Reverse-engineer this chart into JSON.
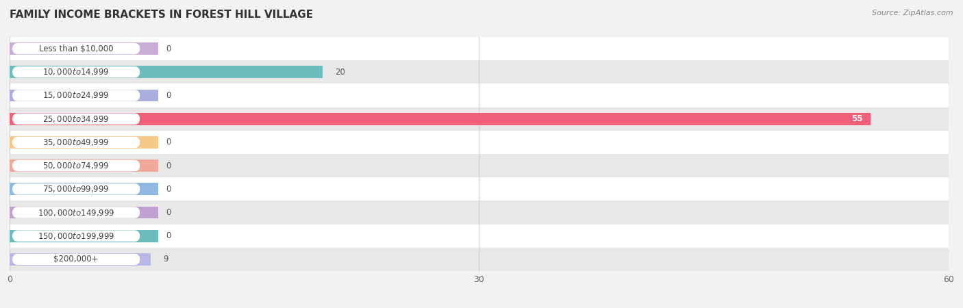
{
  "title": "FAMILY INCOME BRACKETS IN FOREST HILL VILLAGE",
  "source": "Source: ZipAtlas.com",
  "categories": [
    "Less than $10,000",
    "$10,000 to $14,999",
    "$15,000 to $24,999",
    "$25,000 to $34,999",
    "$35,000 to $49,999",
    "$50,000 to $74,999",
    "$75,000 to $99,999",
    "$100,000 to $149,999",
    "$150,000 to $199,999",
    "$200,000+"
  ],
  "values": [
    0,
    20,
    0,
    55,
    0,
    0,
    0,
    0,
    0,
    9
  ],
  "bar_colors": [
    "#c9aed6",
    "#6bbcbb",
    "#a9aedd",
    "#f0607a",
    "#f5c98a",
    "#f0a89a",
    "#90b8e0",
    "#c0a0d0",
    "#6bbcbb",
    "#b8b8e8"
  ],
  "xlim": [
    0,
    60
  ],
  "xticks": [
    0,
    30,
    60
  ],
  "background_color": "#f2f2f2",
  "title_fontsize": 11,
  "label_fontsize": 8.5,
  "value_fontsize": 8.5,
  "source_fontsize": 8
}
